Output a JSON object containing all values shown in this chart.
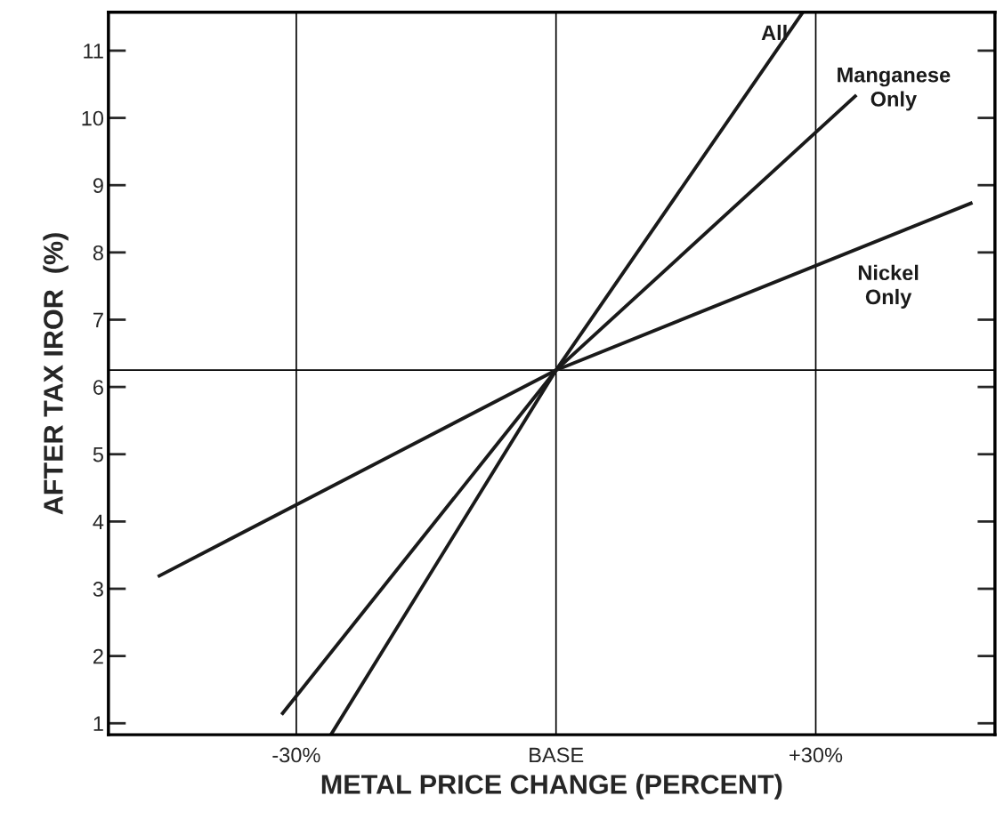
{
  "chart_data": {
    "type": "line",
    "xlabel": "METAL PRICE CHANGE (PERCENT)",
    "ylabel": "AFTER TAX IROR  (%)",
    "xlim": [
      -51.7,
      50.7
    ],
    "xticks": [
      {
        "value": -30,
        "label": "-30%"
      },
      {
        "value": 0,
        "label": "BASE"
      },
      {
        "value": 30,
        "label": "+30%"
      }
    ],
    "ylim": [
      0.83,
      11.57
    ],
    "yticks": [
      1,
      2,
      3,
      4,
      5,
      6,
      7,
      8,
      9,
      10,
      11
    ],
    "grid": "x",
    "marker": "none",
    "line_style": "solid",
    "ref_lines": [
      {
        "axis": "y",
        "value": 6.25,
        "color": "#000000"
      }
    ],
    "series": [
      {
        "name": "All",
        "color": "#1a1a1a",
        "x": [
          -26.0,
          0,
          28.5
        ],
        "values": [
          0.83,
          6.25,
          11.57
        ]
      },
      {
        "name": "Manganese\nOnly",
        "color": "#1a1a1a",
        "x": [
          -31.7,
          0,
          34.7
        ],
        "values": [
          1.13,
          6.25,
          10.34
        ]
      },
      {
        "name": "Nickel\nOnly",
        "color": "#1a1a1a",
        "x": [
          -46.0,
          0,
          48.1
        ],
        "values": [
          3.18,
          6.25,
          8.74
        ]
      }
    ]
  }
}
